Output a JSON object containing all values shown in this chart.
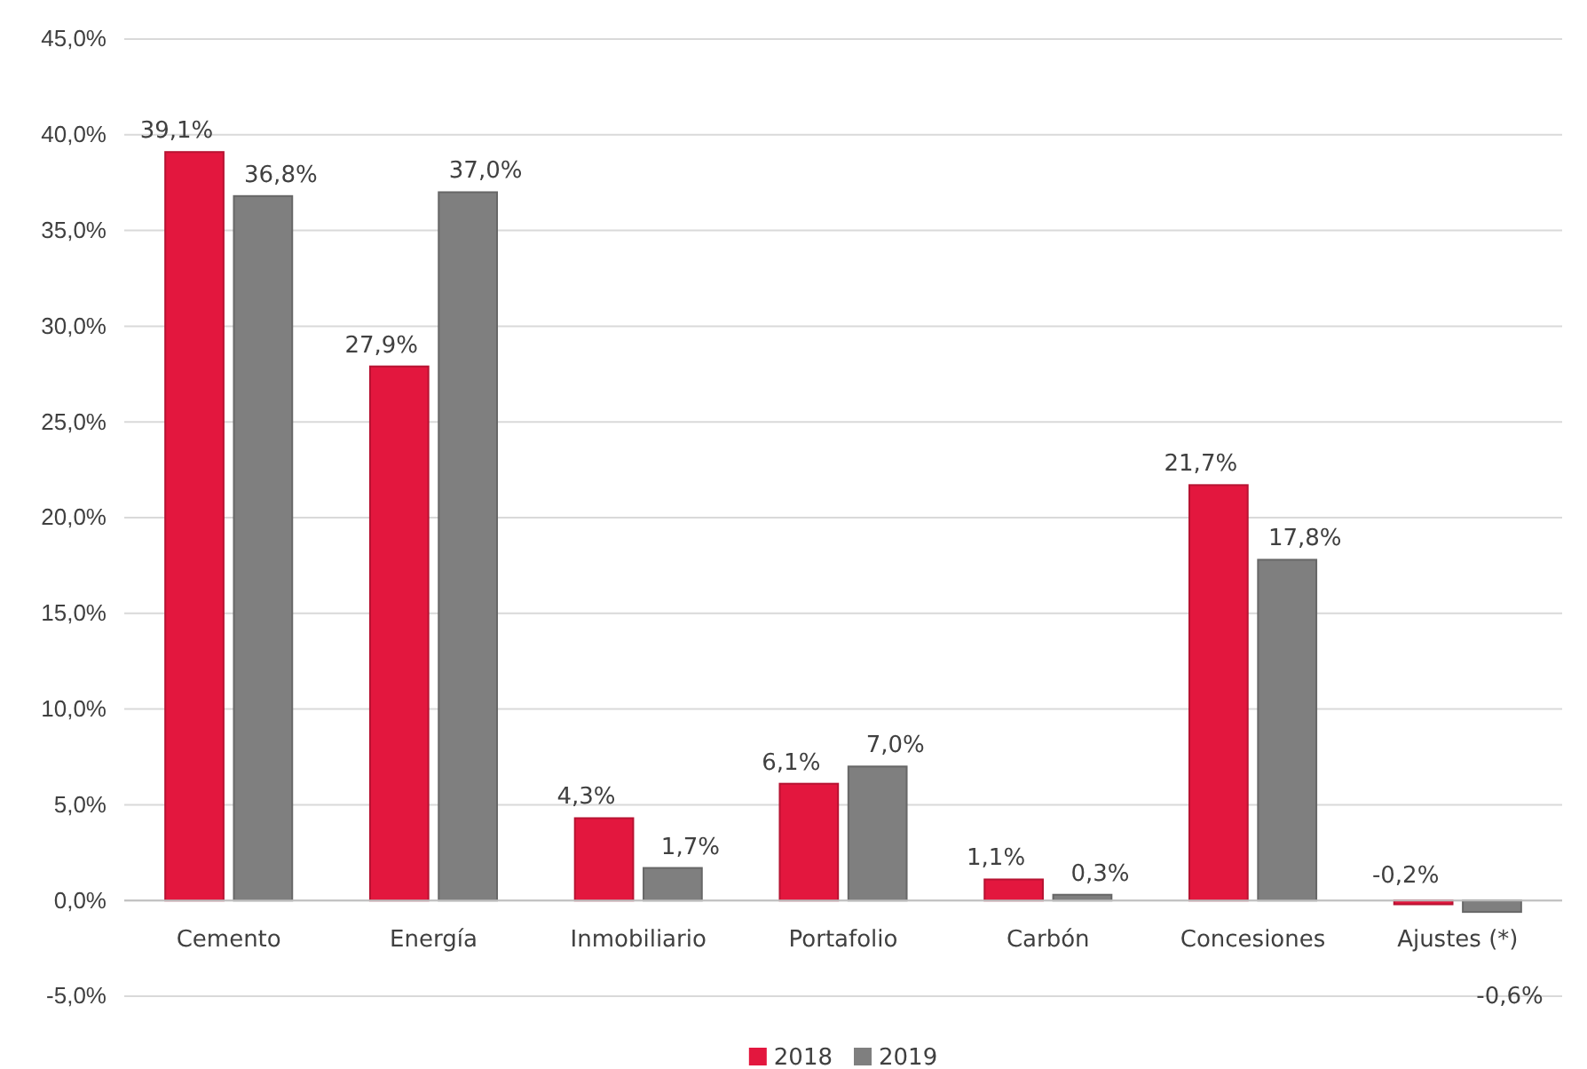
{
  "chart_data": {
    "type": "bar",
    "categories": [
      "Cemento",
      "Energía",
      "Inmobiliario",
      "Portafolio",
      "Carbón",
      "Concesiones",
      "Ajustes (*)"
    ],
    "series": [
      {
        "name": "2018",
        "color": "#e3173e",
        "values": [
          39.1,
          27.9,
          4.3,
          6.1,
          1.1,
          21.7,
          -0.2
        ],
        "value_labels": [
          "39,1%",
          "27,9%",
          "4,3%",
          "6,1%",
          "1,1%",
          "21,7%",
          "-0,2%"
        ]
      },
      {
        "name": "2019",
        "color": "#7f7f7f",
        "values": [
          36.8,
          37.0,
          1.7,
          7.0,
          0.3,
          17.8,
          -0.6
        ],
        "value_labels": [
          "36,8%",
          "37,0%",
          "1,7%",
          "7,0%",
          "0,3%",
          "17,8%",
          "-0,6%"
        ]
      }
    ],
    "ylim": [
      -5,
      45
    ],
    "yticks": [
      {
        "value": -5,
        "label": "-5,0%"
      },
      {
        "value": 0,
        "label": "0,0%"
      },
      {
        "value": 5,
        "label": "5,0%"
      },
      {
        "value": 10,
        "label": "10,0%"
      },
      {
        "value": 15,
        "label": "15,0%"
      },
      {
        "value": 20,
        "label": "20,0%"
      },
      {
        "value": 25,
        "label": "25,0%"
      },
      {
        "value": 30,
        "label": "30,0%"
      },
      {
        "value": 35,
        "label": "35,0%"
      },
      {
        "value": 40,
        "label": "40,0%"
      },
      {
        "value": 45,
        "label": "45,0%"
      }
    ],
    "grid": "y",
    "legend": "bottom"
  }
}
